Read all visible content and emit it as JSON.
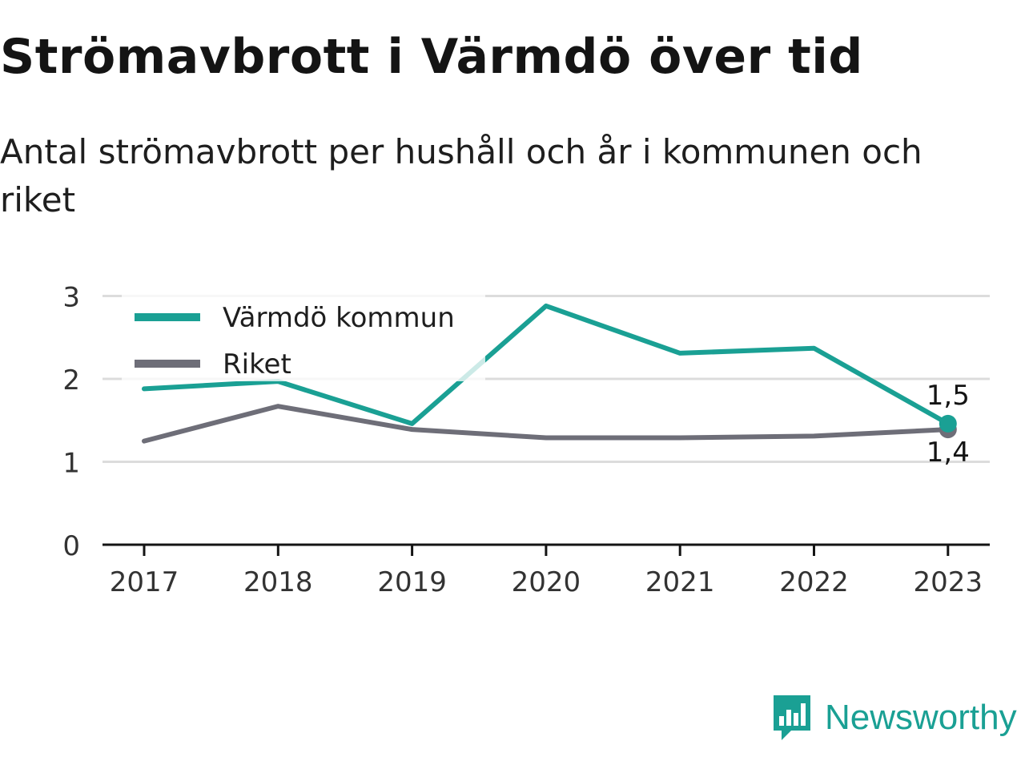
{
  "header": {
    "title": "Strömavbrott i Värmdö över tid",
    "subtitle": "Antal strömavbrott per hushåll och år i kommunen och riket"
  },
  "brand": {
    "name": "Newsworthy",
    "icon": "newsworthy-logo-icon"
  },
  "colors": {
    "varmdo": "#1aa094",
    "riket": "#6e6e78",
    "grid": "#dcdcdc",
    "axis": "#141414",
    "brand": "#1aa094"
  },
  "chart_data": {
    "type": "line",
    "x": [
      "2017",
      "2018",
      "2019",
      "2020",
      "2021",
      "2022",
      "2023"
    ],
    "series": [
      {
        "name": "Värmdö kommun",
        "color": "#1aa094",
        "values": [
          1.88,
          1.97,
          1.46,
          2.88,
          2.31,
          2.37,
          1.46
        ],
        "end_label": "1,5"
      },
      {
        "name": "Riket",
        "color": "#6e6e78",
        "values": [
          1.25,
          1.67,
          1.39,
          1.29,
          1.29,
          1.31,
          1.39
        ],
        "end_label": "1,4"
      }
    ],
    "y_ticks": [
      {
        "value": 0,
        "label": "0"
      },
      {
        "value": 1,
        "label": "1"
      },
      {
        "value": 2,
        "label": "2"
      },
      {
        "value": 3,
        "label": "3"
      }
    ],
    "ylim": [
      0,
      3
    ],
    "grid": true,
    "legend_position": "top-left",
    "title": "Strömavbrott i Värmdö över tid",
    "xlabel": "",
    "ylabel": ""
  }
}
